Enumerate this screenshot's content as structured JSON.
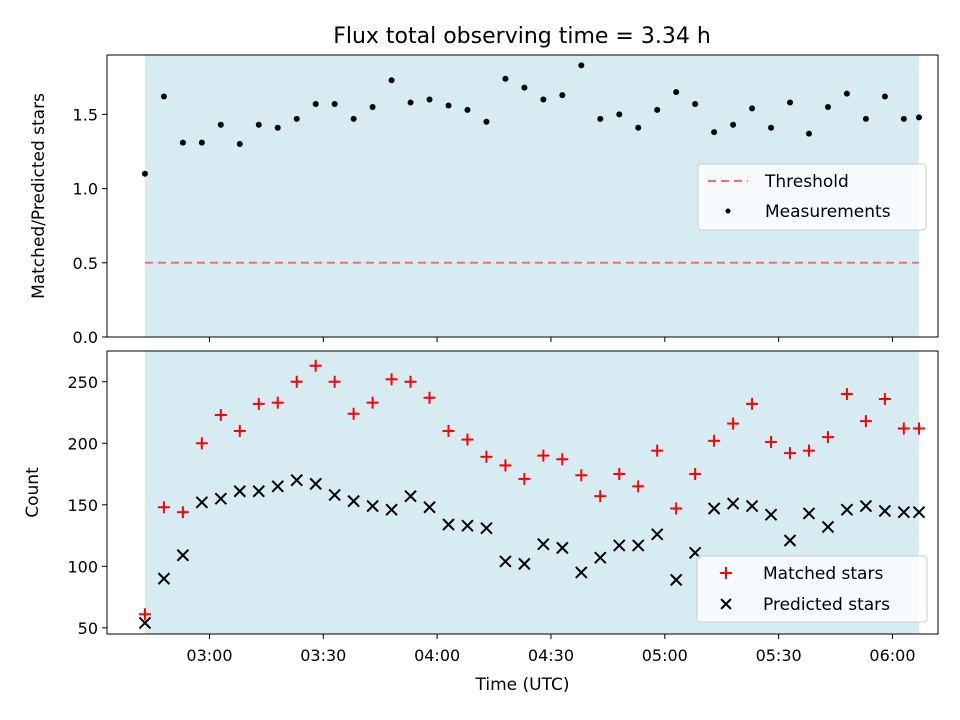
{
  "chart_data": [
    {
      "type": "scatter",
      "title": "Flux total observing time = 3.34 h",
      "xlabel": "",
      "ylabel": "Matched/Predicted stars",
      "ylim": [
        0.0,
        1.9
      ],
      "yticks": [
        "0.0",
        "0.5",
        "1.0",
        "1.5"
      ],
      "xlim": [
        "02:33",
        "06:12"
      ],
      "shaded_range": [
        "02:43",
        "06:07"
      ],
      "shade_color": "#add8e6",
      "threshold": {
        "name": "Threshold",
        "value": 0.5,
        "color": "#f07070"
      },
      "legend": {
        "placement": "center-right",
        "entries": [
          "Threshold",
          "Measurements"
        ]
      },
      "series": [
        {
          "name": "Measurements",
          "color": "#000000",
          "marker": "dot",
          "x": [
            "02:43",
            "02:48",
            "02:53",
            "02:58",
            "03:03",
            "03:08",
            "03:13",
            "03:18",
            "03:23",
            "03:28",
            "03:33",
            "03:38",
            "03:43",
            "03:48",
            "03:53",
            "03:58",
            "04:03",
            "04:08",
            "04:13",
            "04:18",
            "04:23",
            "04:28",
            "04:33",
            "04:38",
            "04:43",
            "04:48",
            "04:53",
            "04:58",
            "05:03",
            "05:08",
            "05:13",
            "05:18",
            "05:23",
            "05:28",
            "05:33",
            "05:38",
            "05:43",
            "05:48",
            "05:53",
            "05:58",
            "06:03",
            "06:07"
          ],
          "values": [
            1.1,
            1.62,
            1.31,
            1.31,
            1.43,
            1.3,
            1.43,
            1.41,
            1.47,
            1.57,
            1.57,
            1.47,
            1.55,
            1.73,
            1.58,
            1.6,
            1.56,
            1.53,
            1.45,
            1.74,
            1.68,
            1.6,
            1.63,
            1.83,
            1.47,
            1.5,
            1.41,
            1.53,
            1.65,
            1.57,
            1.38,
            1.43,
            1.54,
            1.41,
            1.58,
            1.37,
            1.55,
            1.64,
            1.47,
            1.62,
            1.47,
            1.48
          ]
        }
      ]
    },
    {
      "type": "scatter",
      "xlabel": "Time (UTC)",
      "ylabel": "Count",
      "ylim": [
        45,
        275
      ],
      "yticks": [
        "50",
        "100",
        "150",
        "200",
        "250"
      ],
      "xlim": [
        "02:33",
        "06:12"
      ],
      "xticks": [
        "03:00",
        "03:30",
        "04:00",
        "04:30",
        "05:00",
        "05:30",
        "06:00"
      ],
      "shaded_range": [
        "02:43",
        "06:07"
      ],
      "shade_color": "#add8e6",
      "legend": {
        "placement": "bottom-right",
        "entries": [
          "Matched stars",
          "Predicted stars"
        ]
      },
      "series": [
        {
          "name": "Matched stars",
          "color": "#ff0000",
          "marker": "plus",
          "x": [
            "02:43",
            "02:48",
            "02:53",
            "02:58",
            "03:03",
            "03:08",
            "03:13",
            "03:18",
            "03:23",
            "03:28",
            "03:33",
            "03:38",
            "03:43",
            "03:48",
            "03:53",
            "03:58",
            "04:03",
            "04:08",
            "04:13",
            "04:18",
            "04:23",
            "04:28",
            "04:33",
            "04:38",
            "04:43",
            "04:48",
            "04:53",
            "04:58",
            "05:03",
            "05:08",
            "05:13",
            "05:18",
            "05:23",
            "05:28",
            "05:33",
            "05:38",
            "05:43",
            "05:48",
            "05:53",
            "05:58",
            "06:03",
            "06:07"
          ],
          "values": [
            61,
            148,
            144,
            200,
            223,
            210,
            232,
            233,
            250,
            263,
            250,
            224,
            233,
            252,
            250,
            237,
            210,
            203,
            189,
            182,
            171,
            190,
            187,
            174,
            157,
            175,
            165,
            194,
            147,
            175,
            202,
            216,
            232,
            201,
            192,
            194,
            205,
            240,
            218,
            236,
            212,
            212
          ]
        },
        {
          "name": "Predicted stars",
          "color": "#000000",
          "marker": "x",
          "x": [
            "02:43",
            "02:48",
            "02:53",
            "02:58",
            "03:03",
            "03:08",
            "03:13",
            "03:18",
            "03:23",
            "03:28",
            "03:33",
            "03:38",
            "03:43",
            "03:48",
            "03:53",
            "03:58",
            "04:03",
            "04:08",
            "04:13",
            "04:18",
            "04:23",
            "04:28",
            "04:33",
            "04:38",
            "04:43",
            "04:48",
            "04:53",
            "04:58",
            "05:03",
            "05:08",
            "05:13",
            "05:18",
            "05:23",
            "05:28",
            "05:33",
            "05:38",
            "05:43",
            "05:48",
            "05:53",
            "05:58",
            "06:03",
            "06:07"
          ],
          "values": [
            54,
            90,
            109,
            152,
            155,
            161,
            161,
            165,
            170,
            167,
            158,
            153,
            149,
            146,
            157,
            148,
            134,
            133,
            131,
            104,
            102,
            118,
            115,
            95,
            107,
            117,
            117,
            126,
            89,
            111,
            147,
            151,
            149,
            142,
            121,
            143,
            132,
            146,
            149,
            145,
            144,
            144
          ]
        }
      ]
    }
  ]
}
